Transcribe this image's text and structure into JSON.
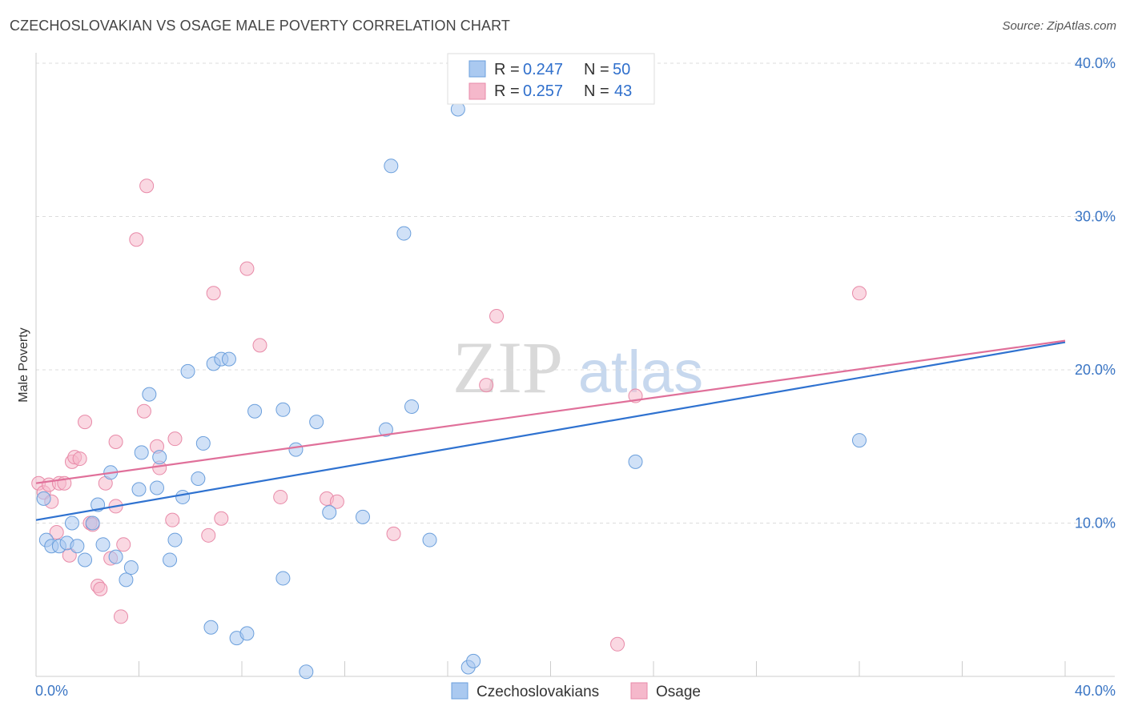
{
  "header": {
    "title": "CZECHOSLOVAKIAN VS OSAGE MALE POVERTY CORRELATION CHART",
    "source": "Source: ZipAtlas.com"
  },
  "watermark": {
    "zip": "ZIP",
    "atlas": "atlas"
  },
  "colors": {
    "blue_fill": "#aac9f0",
    "blue_stroke": "#6b9fdc",
    "blue_line": "#2f72d0",
    "pink_fill": "#f5b8cb",
    "pink_stroke": "#e88aa8",
    "pink_line": "#e0709a"
  },
  "legend": {
    "r_label": "R =",
    "n_label": "N =",
    "rows": [
      {
        "r": "0.247",
        "n": "50"
      },
      {
        "r": "0.257",
        "n": "43"
      }
    ]
  },
  "chart_data": {
    "type": "scatter",
    "title": "CZECHOSLOVAKIAN VS OSAGE MALE POVERTY CORRELATION CHART",
    "xlabel": "",
    "ylabel": "Male Poverty",
    "xlim": [
      0,
      40
    ],
    "ylim": [
      0,
      40
    ],
    "x_tick_labels": [
      "0.0%",
      "40.0%"
    ],
    "y_ticks": [
      10,
      20,
      30,
      40
    ],
    "y_tick_labels": [
      "10.0%",
      "20.0%",
      "30.0%",
      "40.0%"
    ],
    "grid": true,
    "legend_position": "top-center",
    "series": [
      {
        "name": "Czechoslovakians",
        "r": 0.247,
        "n": 50,
        "trend": {
          "x": [
            0,
            40
          ],
          "y": [
            10.2,
            21.8
          ]
        },
        "points": [
          [
            0.3,
            11.6
          ],
          [
            0.4,
            8.9
          ],
          [
            0.6,
            8.5
          ],
          [
            0.9,
            8.5
          ],
          [
            1.2,
            8.7
          ],
          [
            1.4,
            10.0
          ],
          [
            1.6,
            8.5
          ],
          [
            1.9,
            7.6
          ],
          [
            2.2,
            10.0
          ],
          [
            2.4,
            11.2
          ],
          [
            2.6,
            8.6
          ],
          [
            2.9,
            13.3
          ],
          [
            3.1,
            7.8
          ],
          [
            3.5,
            6.3
          ],
          [
            3.7,
            7.1
          ],
          [
            4.0,
            12.2
          ],
          [
            4.1,
            14.6
          ],
          [
            4.4,
            18.4
          ],
          [
            4.7,
            12.3
          ],
          [
            4.8,
            14.3
          ],
          [
            5.2,
            7.6
          ],
          [
            5.4,
            8.9
          ],
          [
            5.7,
            11.7
          ],
          [
            5.9,
            19.9
          ],
          [
            6.3,
            12.9
          ],
          [
            6.5,
            15.2
          ],
          [
            6.8,
            3.2
          ],
          [
            6.9,
            20.4
          ],
          [
            7.2,
            20.7
          ],
          [
            7.5,
            20.7
          ],
          [
            7.8,
            2.5
          ],
          [
            8.2,
            2.8
          ],
          [
            8.5,
            17.3
          ],
          [
            9.6,
            6.4
          ],
          [
            9.6,
            17.4
          ],
          [
            10.1,
            14.8
          ],
          [
            10.5,
            0.3
          ],
          [
            10.9,
            16.6
          ],
          [
            11.4,
            10.7
          ],
          [
            12.7,
            10.4
          ],
          [
            13.6,
            16.1
          ],
          [
            13.8,
            33.3
          ],
          [
            14.3,
            28.9
          ],
          [
            14.6,
            17.6
          ],
          [
            15.3,
            8.9
          ],
          [
            16.4,
            37.0
          ],
          [
            16.8,
            0.6
          ],
          [
            17.0,
            1.0
          ],
          [
            23.3,
            14.0
          ],
          [
            32.0,
            15.4
          ]
        ]
      },
      {
        "name": "Osage",
        "r": 0.257,
        "n": 43,
        "trend": {
          "x": [
            0,
            40
          ],
          "y": [
            12.6,
            21.9
          ]
        },
        "points": [
          [
            0.1,
            12.6
          ],
          [
            0.3,
            12.0
          ],
          [
            0.5,
            12.5
          ],
          [
            0.6,
            11.4
          ],
          [
            0.8,
            9.4
          ],
          [
            0.9,
            12.6
          ],
          [
            1.1,
            12.6
          ],
          [
            1.3,
            7.9
          ],
          [
            1.4,
            14.0
          ],
          [
            1.5,
            14.3
          ],
          [
            1.7,
            14.2
          ],
          [
            1.9,
            16.6
          ],
          [
            2.1,
            10.0
          ],
          [
            2.2,
            9.9
          ],
          [
            2.4,
            5.9
          ],
          [
            2.5,
            5.7
          ],
          [
            2.7,
            12.6
          ],
          [
            2.9,
            7.7
          ],
          [
            3.1,
            11.1
          ],
          [
            3.1,
            15.3
          ],
          [
            3.3,
            3.9
          ],
          [
            3.4,
            8.6
          ],
          [
            3.9,
            28.5
          ],
          [
            4.2,
            17.3
          ],
          [
            4.3,
            32.0
          ],
          [
            4.7,
            15.0
          ],
          [
            4.8,
            13.6
          ],
          [
            5.3,
            10.2
          ],
          [
            5.4,
            15.5
          ],
          [
            6.7,
            9.2
          ],
          [
            6.9,
            25.0
          ],
          [
            7.2,
            10.3
          ],
          [
            8.2,
            26.6
          ],
          [
            8.7,
            21.6
          ],
          [
            9.5,
            11.7
          ],
          [
            11.3,
            11.6
          ],
          [
            11.7,
            11.4
          ],
          [
            13.9,
            9.3
          ],
          [
            17.9,
            23.5
          ],
          [
            17.5,
            19.0
          ],
          [
            22.6,
            2.1
          ],
          [
            23.3,
            18.3
          ],
          [
            32.0,
            25.0
          ]
        ]
      }
    ]
  }
}
